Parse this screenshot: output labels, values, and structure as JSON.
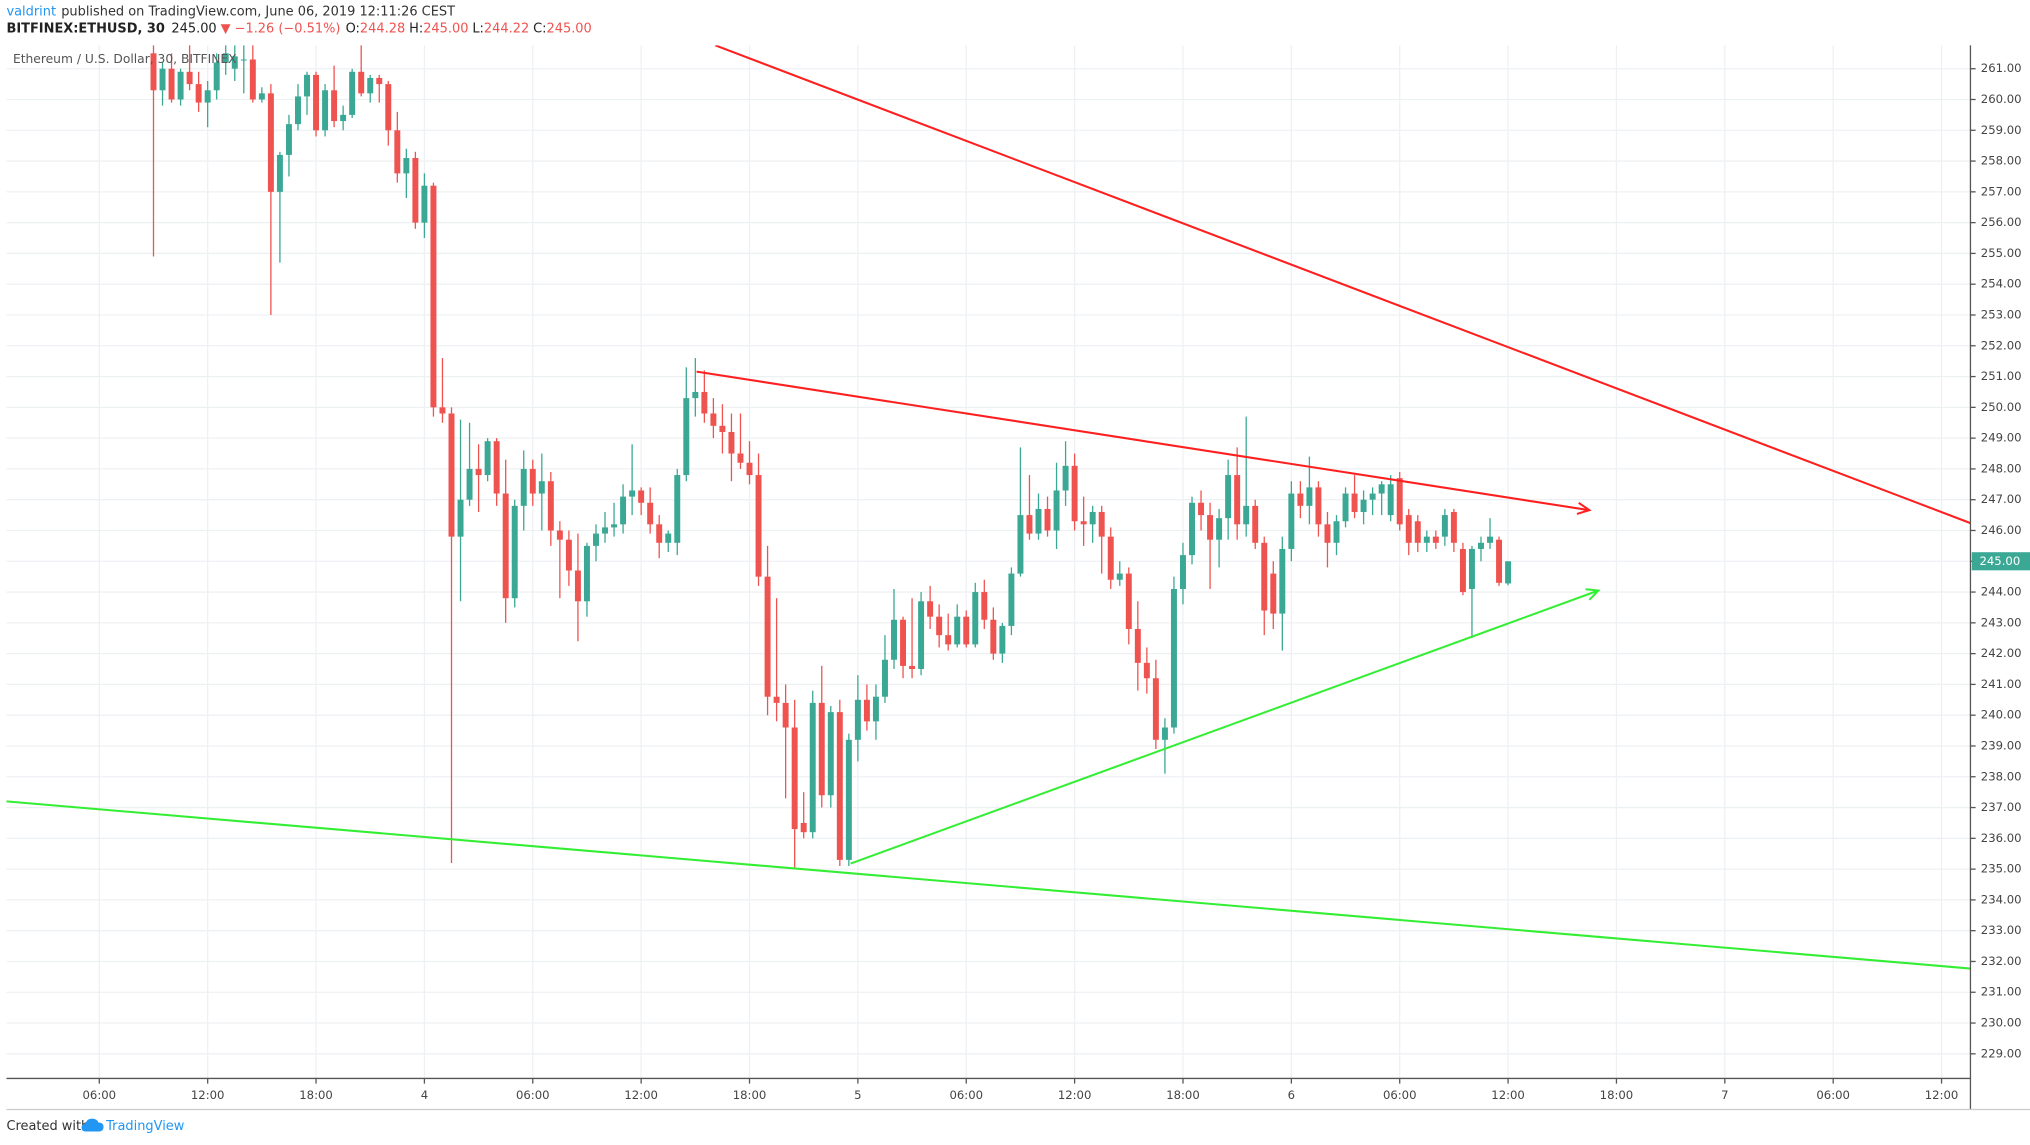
{
  "header": {
    "author": "valdrint",
    "published": "published on TradingView.com, June 06, 2019 12:11:26 CEST",
    "line2": [
      "BITFINEX:ETHUSD, 30",
      "245.00",
      "▼ −1.26 (−0.51%)",
      "O:",
      "244.28",
      "H:",
      "245.00",
      "L:",
      "244.22",
      "C:",
      "245.00"
    ]
  },
  "chart_data": {
    "type": "candlestick",
    "title": "Ethereum / U.S. Dollar, 30, BITFINEX",
    "up_color": "#3aa894",
    "down_color": "#ef5350",
    "grid": true,
    "xlim": [
      0.86,
      109.6
    ],
    "ylim": [
      228.2,
      261.76
    ],
    "xticks": [
      {
        "value": 6,
        "label": "06:00"
      },
      {
        "value": 12,
        "label": "12:00"
      },
      {
        "value": 18,
        "label": "18:00"
      },
      {
        "value": 24,
        "label": "4"
      },
      {
        "value": 30,
        "label": "06:00"
      },
      {
        "value": 36,
        "label": "12:00"
      },
      {
        "value": 42,
        "label": "18:00"
      },
      {
        "value": 48,
        "label": "5"
      },
      {
        "value": 54,
        "label": "06:00"
      },
      {
        "value": 60,
        "label": "12:00"
      },
      {
        "value": 66,
        "label": "18:00"
      },
      {
        "value": 72,
        "label": "6"
      },
      {
        "value": 78,
        "label": "06:00"
      },
      {
        "value": 84,
        "label": "12:00"
      },
      {
        "value": 90,
        "label": "18:00"
      },
      {
        "value": 96,
        "label": "7"
      },
      {
        "value": 102,
        "label": "06:00"
      },
      {
        "value": 108,
        "label": "12:00"
      }
    ],
    "yticks": [
      {
        "value": 229,
        "label": "229.00"
      },
      {
        "value": 230,
        "label": "230.00"
      },
      {
        "value": 231,
        "label": "231.00"
      },
      {
        "value": 232,
        "label": "232.00"
      },
      {
        "value": 233,
        "label": "233.00"
      },
      {
        "value": 234,
        "label": "234.00"
      },
      {
        "value": 235,
        "label": "235.00"
      },
      {
        "value": 236,
        "label": "236.00"
      },
      {
        "value": 237,
        "label": "237.00"
      },
      {
        "value": 238,
        "label": "238.00"
      },
      {
        "value": 239,
        "label": "239.00"
      },
      {
        "value": 240,
        "label": "240.00"
      },
      {
        "value": 241,
        "label": "241.00"
      },
      {
        "value": 242,
        "label": "242.00"
      },
      {
        "value": 243,
        "label": "243.00"
      },
      {
        "value": 244,
        "label": "244.00"
      },
      {
        "value": 245,
        "label": "245.00"
      },
      {
        "value": 246,
        "label": "246.00"
      },
      {
        "value": 247,
        "label": "247.00"
      },
      {
        "value": 248,
        "label": "248.00"
      },
      {
        "value": 249,
        "label": "249.00"
      },
      {
        "value": 250,
        "label": "250.00"
      },
      {
        "value": 251,
        "label": "251.00"
      },
      {
        "value": 252,
        "label": "252.00"
      },
      {
        "value": 253,
        "label": "253.00"
      },
      {
        "value": 254,
        "label": "254.00"
      },
      {
        "value": 255,
        "label": "255.00"
      },
      {
        "value": 256,
        "label": "256.00"
      },
      {
        "value": 257,
        "label": "257.00"
      },
      {
        "value": 258,
        "label": "258.00"
      },
      {
        "value": 259,
        "label": "259.00"
      },
      {
        "value": 260,
        "label": "260.00"
      },
      {
        "value": 261,
        "label": "261.00"
      }
    ],
    "last_price": {
      "value": 245,
      "label": "245.00"
    },
    "x": [
      9,
      9.5,
      10,
      10.5,
      11,
      11.5,
      12,
      12.5,
      13,
      13.5,
      14,
      14.5,
      15,
      15.5,
      16,
      16.5,
      17,
      17.5,
      18,
      18.5,
      19,
      19.5,
      20,
      20.5,
      21,
      21.5,
      22,
      22.5,
      23,
      23.5,
      24,
      24.5,
      25,
      25.5,
      26,
      26.5,
      27,
      27.5,
      28,
      28.5,
      29,
      29.5,
      30,
      30.5,
      31,
      31.5,
      32,
      32.5,
      33,
      33.5,
      34,
      34.5,
      35,
      35.5,
      36,
      36.5,
      37,
      37.5,
      38,
      38.5,
      39,
      39.5,
      40,
      40.5,
      41,
      41.5,
      42,
      42.5,
      43,
      43.5,
      44,
      44.5,
      45,
      45.5,
      46,
      46.5,
      47,
      47.5,
      48,
      48.5,
      49,
      49.5,
      50,
      50.5,
      51,
      51.5,
      52,
      52.5,
      53,
      53.5,
      54,
      54.5,
      55,
      55.5,
      56,
      56.5,
      57,
      57.5,
      58,
      58.5,
      59,
      59.5,
      60,
      60.5,
      61,
      61.5,
      62,
      62.5,
      63,
      63.5,
      64,
      64.5,
      65,
      65.5,
      66,
      66.5,
      67,
      67.5,
      68,
      68.5,
      69,
      69.5,
      70,
      70.5,
      71,
      71.5,
      72,
      72.5,
      73,
      73.5,
      74,
      74.5,
      75,
      75.5,
      76,
      76.5,
      77,
      77.5,
      78,
      78.5,
      79,
      79.5,
      80,
      80.5,
      81,
      81.5,
      82,
      82.5,
      83,
      83.5,
      84
    ],
    "ohlc": [
      [
        261.5,
        261.8,
        254.9,
        260.3
      ],
      [
        260.3,
        261.2,
        259.8,
        261.0
      ],
      [
        261.0,
        261.5,
        259.9,
        260.0
      ],
      [
        260.0,
        261.0,
        259.8,
        260.9
      ],
      [
        260.9,
        261.8,
        260.3,
        260.5
      ],
      [
        260.5,
        260.9,
        259.6,
        259.9
      ],
      [
        259.9,
        260.6,
        259.1,
        260.3
      ],
      [
        260.3,
        261.5,
        260.0,
        261.2
      ],
      [
        261.2,
        261.8,
        260.8,
        261.5
      ],
      [
        261.0,
        261.8,
        260.6,
        261.4
      ],
      [
        261.3,
        261.8,
        260.2,
        261.3
      ],
      [
        261.3,
        261.8,
        259.9,
        260.0
      ],
      [
        260.0,
        260.4,
        259.9,
        260.2
      ],
      [
        260.2,
        260.5,
        253.0,
        257.0
      ],
      [
        257.0,
        258.3,
        254.7,
        258.2
      ],
      [
        258.2,
        259.5,
        257.5,
        259.2
      ],
      [
        259.2,
        260.5,
        259.0,
        260.1
      ],
      [
        260.1,
        260.9,
        259.5,
        260.8
      ],
      [
        260.8,
        260.9,
        258.8,
        259.0
      ],
      [
        259.0,
        260.5,
        258.8,
        260.3
      ],
      [
        260.3,
        261.1,
        259.1,
        259.3
      ],
      [
        259.3,
        259.8,
        259.0,
        259.5
      ],
      [
        259.5,
        261.0,
        259.4,
        260.9
      ],
      [
        260.9,
        261.8,
        260.1,
        260.2
      ],
      [
        260.2,
        260.8,
        259.9,
        260.7
      ],
      [
        260.7,
        260.8,
        259.9,
        260.5
      ],
      [
        260.5,
        260.6,
        258.5,
        259.0
      ],
      [
        259.0,
        259.6,
        257.3,
        257.6
      ],
      [
        257.6,
        258.4,
        256.8,
        258.1
      ],
      [
        258.1,
        258.3,
        255.8,
        256.0
      ],
      [
        256.0,
        257.6,
        255.5,
        257.2
      ],
      [
        257.2,
        257.3,
        249.7,
        250.0
      ],
      [
        250.0,
        251.6,
        249.5,
        249.8
      ],
      [
        249.8,
        250.0,
        235.2,
        245.8
      ],
      [
        245.8,
        249.6,
        243.7,
        247.0
      ],
      [
        247.0,
        249.5,
        246.8,
        248.0
      ],
      [
        248.0,
        248.8,
        246.6,
        247.8
      ],
      [
        247.8,
        249.0,
        247.6,
        248.9
      ],
      [
        248.9,
        249.0,
        246.8,
        247.2
      ],
      [
        247.2,
        248.3,
        243.0,
        243.8
      ],
      [
        243.8,
        247.0,
        243.5,
        246.8
      ],
      [
        246.8,
        248.6,
        246.0,
        248.0
      ],
      [
        248.0,
        248.3,
        246.8,
        247.2
      ],
      [
        247.2,
        248.5,
        246.0,
        247.6
      ],
      [
        247.6,
        247.9,
        245.5,
        246.0
      ],
      [
        246.0,
        246.3,
        243.8,
        245.7
      ],
      [
        245.7,
        246.0,
        244.2,
        244.7
      ],
      [
        244.7,
        245.9,
        242.4,
        243.7
      ],
      [
        243.7,
        245.6,
        243.2,
        245.5
      ],
      [
        245.5,
        246.2,
        245.0,
        245.9
      ],
      [
        245.9,
        246.6,
        245.6,
        246.1
      ],
      [
        246.1,
        246.9,
        245.8,
        246.2
      ],
      [
        246.2,
        247.5,
        245.9,
        247.1
      ],
      [
        247.1,
        248.8,
        246.5,
        247.3
      ],
      [
        247.3,
        247.4,
        246.5,
        246.9
      ],
      [
        246.9,
        247.4,
        245.9,
        246.2
      ],
      [
        246.2,
        246.5,
        245.1,
        245.6
      ],
      [
        245.6,
        246.0,
        245.3,
        245.9
      ],
      [
        245.6,
        248.0,
        245.2,
        247.8
      ],
      [
        247.8,
        251.3,
        247.6,
        250.3
      ],
      [
        250.3,
        251.6,
        249.7,
        250.5
      ],
      [
        250.5,
        251.2,
        249.5,
        249.8
      ],
      [
        249.8,
        250.3,
        249.0,
        249.4
      ],
      [
        249.4,
        250.1,
        248.5,
        249.2
      ],
      [
        249.2,
        249.8,
        247.6,
        248.5
      ],
      [
        248.5,
        249.8,
        248.0,
        248.2
      ],
      [
        248.2,
        248.9,
        247.5,
        247.8
      ],
      [
        247.8,
        248.5,
        244.2,
        244.5
      ],
      [
        244.5,
        245.5,
        240.0,
        240.6
      ],
      [
        240.6,
        243.8,
        239.8,
        240.4
      ],
      [
        240.4,
        241.0,
        237.3,
        239.6
      ],
      [
        239.6,
        240.5,
        235.0,
        236.3
      ],
      [
        236.5,
        237.5,
        236.0,
        236.2
      ],
      [
        236.2,
        240.8,
        236.0,
        240.4
      ],
      [
        240.4,
        241.6,
        237.0,
        237.4
      ],
      [
        237.4,
        240.3,
        237.0,
        240.1
      ],
      [
        240.1,
        240.5,
        235.1,
        235.3
      ],
      [
        235.3,
        239.4,
        235.1,
        239.2
      ],
      [
        239.2,
        241.3,
        238.5,
        240.5
      ],
      [
        240.5,
        241.0,
        239.5,
        239.8
      ],
      [
        239.8,
        241.0,
        239.2,
        240.6
      ],
      [
        240.6,
        242.6,
        240.4,
        241.8
      ],
      [
        241.8,
        244.1,
        241.5,
        243.1
      ],
      [
        243.1,
        243.2,
        241.2,
        241.6
      ],
      [
        241.6,
        243.8,
        241.2,
        241.5
      ],
      [
        241.5,
        244.0,
        241.3,
        243.7
      ],
      [
        243.7,
        244.2,
        242.8,
        243.2
      ],
      [
        243.2,
        243.6,
        242.2,
        242.6
      ],
      [
        242.6,
        243.3,
        242.1,
        242.3
      ],
      [
        242.3,
        243.6,
        242.2,
        243.2
      ],
      [
        243.2,
        243.4,
        242.2,
        242.3
      ],
      [
        242.3,
        244.3,
        242.2,
        244.0
      ],
      [
        244.0,
        244.4,
        242.8,
        243.1
      ],
      [
        243.1,
        243.5,
        241.8,
        242.0
      ],
      [
        242.0,
        243.0,
        241.7,
        242.9
      ],
      [
        242.9,
        244.8,
        242.6,
        244.6
      ],
      [
        244.6,
        248.7,
        244.5,
        246.5
      ],
      [
        246.5,
        247.8,
        245.7,
        245.9
      ],
      [
        245.9,
        247.2,
        245.7,
        246.7
      ],
      [
        246.7,
        247.1,
        245.8,
        246.0
      ],
      [
        246.0,
        248.2,
        245.4,
        247.3
      ],
      [
        247.3,
        248.9,
        246.8,
        248.1
      ],
      [
        248.1,
        248.5,
        246.0,
        246.3
      ],
      [
        246.3,
        247.1,
        245.5,
        246.2
      ],
      [
        246.2,
        246.8,
        245.6,
        246.6
      ],
      [
        246.6,
        246.8,
        244.6,
        245.8
      ],
      [
        245.8,
        246.1,
        244.1,
        244.4
      ],
      [
        244.4,
        245.0,
        244.2,
        244.6
      ],
      [
        244.6,
        244.8,
        242.3,
        242.8
      ],
      [
        242.8,
        243.7,
        240.8,
        241.7
      ],
      [
        241.7,
        242.2,
        240.7,
        241.2
      ],
      [
        241.2,
        241.8,
        238.9,
        239.2
      ],
      [
        239.2,
        239.9,
        238.1,
        239.6
      ],
      [
        239.6,
        244.5,
        239.4,
        244.1
      ],
      [
        244.1,
        245.6,
        243.6,
        245.2
      ],
      [
        245.2,
        247.1,
        244.9,
        246.9
      ],
      [
        246.9,
        247.3,
        246.0,
        246.5
      ],
      [
        246.5,
        246.9,
        244.1,
        245.7
      ],
      [
        245.7,
        246.7,
        244.8,
        246.4
      ],
      [
        246.4,
        248.3,
        245.7,
        247.8
      ],
      [
        247.8,
        248.7,
        245.7,
        246.2
      ],
      [
        246.2,
        249.7,
        245.8,
        246.8
      ],
      [
        246.8,
        247.0,
        245.4,
        245.6
      ],
      [
        245.6,
        245.8,
        242.6,
        243.4
      ],
      [
        244.6,
        245.0,
        242.8,
        243.3
      ],
      [
        243.3,
        245.8,
        242.1,
        245.4
      ],
      [
        245.4,
        247.6,
        245.0,
        247.2
      ],
      [
        247.2,
        247.6,
        246.4,
        246.8
      ],
      [
        246.8,
        248.4,
        246.2,
        247.4
      ],
      [
        247.4,
        247.6,
        245.8,
        246.2
      ],
      [
        246.2,
        246.6,
        244.8,
        245.6
      ],
      [
        245.6,
        246.5,
        245.2,
        246.3
      ],
      [
        246.3,
        247.4,
        246.1,
        247.2
      ],
      [
        247.2,
        247.8,
        246.4,
        246.6
      ],
      [
        246.6,
        247.3,
        246.2,
        247.0
      ],
      [
        247.0,
        247.4,
        246.5,
        247.2
      ],
      [
        247.2,
        247.6,
        246.5,
        247.5
      ],
      [
        246.5,
        247.8,
        246.3,
        247.5
      ],
      [
        247.7,
        247.9,
        246.0,
        246.2
      ],
      [
        246.5,
        246.7,
        245.2,
        245.6
      ],
      [
        246.3,
        246.5,
        245.3,
        245.6
      ],
      [
        245.6,
        246.0,
        245.3,
        245.8
      ],
      [
        245.8,
        246.0,
        245.4,
        245.6
      ],
      [
        245.8,
        246.7,
        245.5,
        246.5
      ],
      [
        246.6,
        246.7,
        245.3,
        245.6
      ],
      [
        245.4,
        245.6,
        243.9,
        244.0
      ],
      [
        244.1,
        245.5,
        242.5,
        245.4
      ],
      [
        245.4,
        245.8,
        245.0,
        245.6
      ],
      [
        245.6,
        246.4,
        245.4,
        245.8
      ],
      [
        245.7,
        245.8,
        244.2,
        244.3
      ],
      [
        244.28,
        245.0,
        244.22,
        245.0
      ]
    ],
    "trendlines": [
      {
        "color": "#ff1f1f",
        "arrow": false,
        "points": [
          [
            40.1,
            261.76
          ],
          [
            109.6,
            246.24
          ]
        ]
      },
      {
        "color": "#ff1f1f",
        "arrow": true,
        "points": [
          [
            39.07,
            251.16
          ],
          [
            88.5,
            246.66
          ]
        ]
      },
      {
        "color": "#33ee33",
        "arrow": false,
        "points": [
          [
            0.86,
            237.2
          ],
          [
            109.6,
            231.77
          ]
        ]
      },
      {
        "color": "#33ee33",
        "arrow": true,
        "points": [
          [
            47.6,
            235.18
          ],
          [
            89.0,
            244.05
          ]
        ]
      }
    ]
  },
  "footer": {
    "created": "Created with",
    "brand": "TradingView"
  }
}
